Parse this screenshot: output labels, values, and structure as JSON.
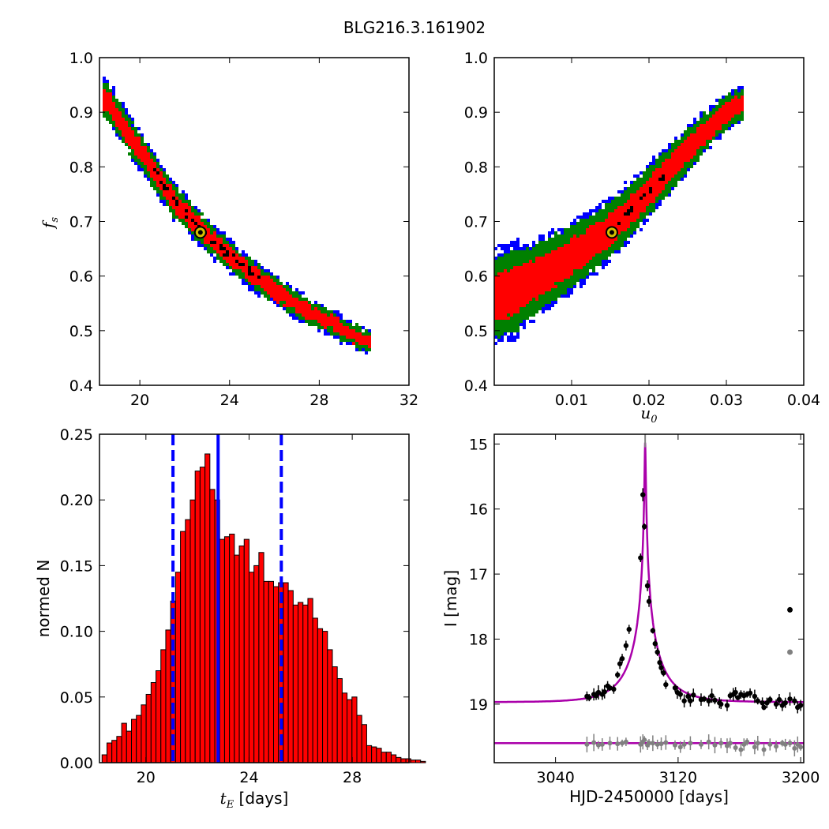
{
  "figure_title": "BLG216.3.161902",
  "chart_data": [
    {
      "type": "scatter",
      "kind": "density-contours",
      "x_variable": "t_E",
      "y_variable": "f_s",
      "xlabel": "",
      "ylabel": "f",
      "ylabel_sub": "s",
      "xlim": [
        18.2,
        32
      ],
      "ylim": [
        0.4,
        1.0
      ],
      "xticks": [
        20,
        24,
        28,
        32
      ],
      "yticks": [
        0.4,
        0.5,
        0.6,
        0.7,
        0.8,
        0.9,
        1.0
      ],
      "ridge": [
        [
          18.5,
          0.925
        ],
        [
          19.5,
          0.86
        ],
        [
          20.5,
          0.8
        ],
        [
          21.5,
          0.74
        ],
        [
          22.5,
          0.695
        ],
        [
          23.5,
          0.655
        ],
        [
          24.5,
          0.62
        ],
        [
          25.5,
          0.588
        ],
        [
          26.5,
          0.56
        ],
        [
          27.5,
          0.535
        ],
        [
          28.5,
          0.515
        ],
        [
          29.5,
          0.492
        ],
        [
          30.2,
          0.48
        ]
      ],
      "level_colors": {
        "outer": "#0000ff",
        "mid": "#008000",
        "inner": "#ff0000",
        "core": "#000000"
      },
      "best_fit": {
        "x": 22.7,
        "y": 0.68
      },
      "grid": false
    },
    {
      "type": "scatter",
      "kind": "density-contours",
      "x_variable": "u_0",
      "y_variable": "f_s",
      "xlabel": "u",
      "xlabel_sub": "0",
      "ylabel": "",
      "xlim": [
        0.0,
        0.04
      ],
      "ylim": [
        0.4,
        1.0
      ],
      "xticks": [
        0.01,
        0.02,
        0.03,
        0.04
      ],
      "yticks": [
        0.4,
        0.5,
        0.6,
        0.7,
        0.8,
        0.9,
        1.0
      ],
      "ridge": [
        [
          0.0,
          0.56
        ],
        [
          0.003,
          0.575
        ],
        [
          0.006,
          0.6
        ],
        [
          0.009,
          0.625
        ],
        [
          0.012,
          0.655
        ],
        [
          0.015,
          0.685
        ],
        [
          0.018,
          0.725
        ],
        [
          0.021,
          0.77
        ],
        [
          0.024,
          0.815
        ],
        [
          0.027,
          0.86
        ],
        [
          0.03,
          0.9
        ],
        [
          0.032,
          0.915
        ]
      ],
      "level_colors": {
        "outer": "#0000ff",
        "mid": "#008000",
        "inner": "#ff0000",
        "core": "#000000"
      },
      "best_fit": {
        "x": 0.0152,
        "y": 0.68
      },
      "grid": false
    },
    {
      "type": "bar",
      "kind": "histogram",
      "xlabel": "t",
      "xlabel_sub": "E",
      "xlabel_suffix": " [days]",
      "ylabel": "normed N",
      "xlim": [
        18.2,
        30.2
      ],
      "ylim": [
        0.0,
        0.25
      ],
      "xticks": [
        20,
        24,
        28
      ],
      "yticks": [
        0.0,
        0.05,
        0.1,
        0.15,
        0.2,
        0.25
      ],
      "bin_start": 18.3,
      "bin_width": 0.19,
      "values": [
        0.006,
        0.015,
        0.017,
        0.02,
        0.03,
        0.024,
        0.033,
        0.036,
        0.044,
        0.052,
        0.061,
        0.07,
        0.086,
        0.101,
        0.123,
        0.145,
        0.176,
        0.185,
        0.2,
        0.222,
        0.225,
        0.235,
        0.208,
        0.2,
        0.17,
        0.172,
        0.174,
        0.158,
        0.165,
        0.17,
        0.145,
        0.15,
        0.16,
        0.138,
        0.138,
        0.134,
        0.137,
        0.137,
        0.131,
        0.12,
        0.122,
        0.12,
        0.125,
        0.11,
        0.102,
        0.1,
        0.086,
        0.073,
        0.064,
        0.053,
        0.048,
        0.05,
        0.036,
        0.029,
        0.013,
        0.012,
        0.011,
        0.008,
        0.008,
        0.006,
        0.004,
        0.003,
        0.003,
        0.002,
        0.002,
        0.001
      ],
      "bar_color": "#ff0000",
      "vlines": [
        {
          "x": 21.05,
          "style": "dashed",
          "color": "#0000ff"
        },
        {
          "x": 22.8,
          "style": "solid",
          "color": "#0000ff"
        },
        {
          "x": 25.25,
          "style": "dashed",
          "color": "#0000ff"
        }
      ],
      "grid": false
    },
    {
      "type": "scatter",
      "kind": "light-curve",
      "xlabel": "HJD-2450000 [days]",
      "ylabel": "I [mag]",
      "xlim": [
        3000,
        3202
      ],
      "ylim": [
        19.9,
        14.85
      ],
      "y_inverted": true,
      "xticks": [
        3040,
        3120,
        3200
      ],
      "yticks": [
        15,
        16,
        17,
        18,
        19
      ],
      "model": {
        "t0": 3098.5,
        "baseline_mag": 18.97,
        "peak_mag": 14.98,
        "tE": 22.7,
        "u0": 0.0152,
        "fs": 0.68,
        "color": "#aa00aa"
      },
      "residual_baseline": 19.6,
      "residual_model_color": "#aa00aa",
      "observations": [
        [
          3060.5,
          18.88
        ],
        [
          3062,
          18.9
        ],
        [
          3065,
          18.85
        ],
        [
          3066.5,
          18.87
        ],
        [
          3068,
          18.82
        ],
        [
          3070.5,
          18.85
        ],
        [
          3072,
          18.81
        ],
        [
          3074,
          18.72
        ],
        [
          3075.5,
          18.75
        ],
        [
          3078,
          18.77
        ],
        [
          3080.5,
          18.55
        ],
        [
          3082,
          18.38
        ],
        [
          3083.5,
          18.3
        ],
        [
          3086,
          18.1
        ],
        [
          3088,
          17.85
        ],
        [
          3095.5,
          16.75
        ],
        [
          3097,
          15.78
        ],
        [
          3098,
          16.27
        ],
        [
          3100,
          17.18
        ],
        [
          3101,
          17.42
        ],
        [
          3103.5,
          17.87
        ],
        [
          3105,
          18.07
        ],
        [
          3106.5,
          18.2
        ],
        [
          3108,
          18.36
        ],
        [
          3109,
          18.44
        ],
        [
          3110.5,
          18.52
        ],
        [
          3112,
          18.7
        ],
        [
          3118,
          18.75
        ],
        [
          3119.5,
          18.82
        ],
        [
          3121.5,
          18.85
        ],
        [
          3124,
          18.95
        ],
        [
          3126.5,
          18.88
        ],
        [
          3128,
          18.95
        ],
        [
          3130,
          18.86
        ],
        [
          3135,
          18.93
        ],
        [
          3137,
          18.92
        ],
        [
          3140,
          18.95
        ],
        [
          3142,
          18.87
        ],
        [
          3144,
          18.94
        ],
        [
          3147,
          18.98
        ],
        [
          3148,
          19.0
        ],
        [
          3152,
          19.02
        ],
        [
          3154,
          18.87
        ],
        [
          3156,
          18.85
        ],
        [
          3157.5,
          18.82
        ],
        [
          3159,
          18.9
        ],
        [
          3161,
          18.85
        ],
        [
          3163,
          18.87
        ],
        [
          3165,
          18.85
        ],
        [
          3167,
          18.83
        ],
        [
          3170,
          18.88
        ],
        [
          3172,
          18.95
        ],
        [
          3175,
          18.98
        ],
        [
          3176,
          19.05
        ],
        [
          3178,
          18.98
        ],
        [
          3180,
          18.93
        ],
        [
          3184,
          19.0
        ],
        [
          3186,
          18.93
        ],
        [
          3188,
          19.02
        ],
        [
          3190,
          18.98
        ],
        [
          3193,
          18.92
        ],
        [
          3196,
          18.95
        ],
        [
          3198,
          19.05
        ],
        [
          3200,
          19.02
        ]
      ],
      "outlier": [
        3193,
        17.55
      ],
      "residual_outlier": [
        3193,
        18.2
      ],
      "residuals": [
        [
          3060.5,
          19.62
        ],
        [
          3065,
          19.59
        ],
        [
          3068,
          19.63
        ],
        [
          3070.5,
          19.62
        ],
        [
          3075.5,
          19.6
        ],
        [
          3080.5,
          19.61
        ],
        [
          3083.5,
          19.6
        ],
        [
          3086,
          19.58
        ],
        [
          3095.5,
          19.62
        ],
        [
          3097,
          19.58
        ],
        [
          3098,
          19.55
        ],
        [
          3100,
          19.63
        ],
        [
          3101,
          19.6
        ],
        [
          3103.5,
          19.6
        ],
        [
          3106.5,
          19.62
        ],
        [
          3109,
          19.61
        ],
        [
          3112,
          19.59
        ],
        [
          3118,
          19.63
        ],
        [
          3121.5,
          19.66
        ],
        [
          3124,
          19.62
        ],
        [
          3128,
          19.6
        ],
        [
          3135,
          19.62
        ],
        [
          3140,
          19.58
        ],
        [
          3144,
          19.63
        ],
        [
          3148,
          19.6
        ],
        [
          3152,
          19.64
        ],
        [
          3154,
          19.6
        ],
        [
          3157.5,
          19.67
        ],
        [
          3161,
          19.7
        ],
        [
          3163,
          19.62
        ],
        [
          3165,
          19.58
        ],
        [
          3170,
          19.66
        ],
        [
          3172,
          19.6
        ],
        [
          3176,
          19.7
        ],
        [
          3180,
          19.62
        ],
        [
          3184,
          19.65
        ],
        [
          3188,
          19.6
        ],
        [
          3190,
          19.62
        ],
        [
          3193,
          19.6
        ],
        [
          3196,
          19.68
        ],
        [
          3198,
          19.62
        ],
        [
          3200,
          19.66
        ]
      ],
      "obs_color": "#000000",
      "residual_color": "#808080",
      "grid": false
    }
  ]
}
